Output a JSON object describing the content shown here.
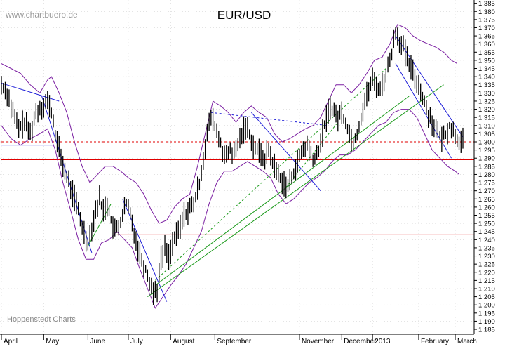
{
  "chart_data": {
    "type": "line",
    "title": "EUR/USD",
    "watermark_top": "www.chartbuero.de",
    "watermark_bottom": "Hoppenstedt Charts",
    "price_style": "high-low bars",
    "colors": {
      "price": "#000000",
      "bollinger": "#7b1fa2",
      "trend_blue": "#1e1ed8",
      "trend_green": "#1a9a1a",
      "support_red": "#e00000",
      "grid": "#c8c8c8"
    },
    "ylim": [
      1.182,
      1.387
    ],
    "y_ticks": [
      "1.385",
      "1.380",
      "1.375",
      "1.370",
      "1.365",
      "1.360",
      "1.355",
      "1.350",
      "1.345",
      "1.340",
      "1.335",
      "1.330",
      "1.325",
      "1.320",
      "1.315",
      "1.310",
      "1.305",
      "1.300",
      "1.295",
      "1.290",
      "1.285",
      "1.280",
      "1.275",
      "1.270",
      "1.265",
      "1.260",
      "1.255",
      "1.250",
      "1.245",
      "1.240",
      "1.235",
      "1.230",
      "1.225",
      "1.220",
      "1.215",
      "1.210",
      "1.205",
      "1.200",
      "1.195",
      "1.190",
      "1.185"
    ],
    "x_range": [
      0,
      240
    ],
    "x_ticks": [
      {
        "label": "April",
        "t": 0
      },
      {
        "label": "May",
        "t": 22
      },
      {
        "label": "June",
        "t": 45
      },
      {
        "label": "July",
        "t": 66
      },
      {
        "label": "August",
        "t": 88
      },
      {
        "label": "September",
        "t": 111
      },
      {
        "label": "November",
        "t": 155
      },
      {
        "label": "December",
        "t": 177
      },
      {
        "label": "2013",
        "t": 193
      },
      {
        "label": "February",
        "t": 217
      },
      {
        "label": "March",
        "t": 236
      }
    ],
    "price_path": [
      [
        0,
        1.335
      ],
      [
        3,
        1.33
      ],
      [
        6,
        1.318
      ],
      [
        9,
        1.308
      ],
      [
        12,
        1.312
      ],
      [
        15,
        1.305
      ],
      [
        18,
        1.318
      ],
      [
        21,
        1.322
      ],
      [
        24,
        1.325
      ],
      [
        26,
        1.318
      ],
      [
        28,
        1.305
      ],
      [
        30,
        1.295
      ],
      [
        33,
        1.282
      ],
      [
        36,
        1.272
      ],
      [
        39,
        1.262
      ],
      [
        42,
        1.248
      ],
      [
        45,
        1.238
      ],
      [
        47,
        1.248
      ],
      [
        49,
        1.258
      ],
      [
        51,
        1.265
      ],
      [
        53,
        1.258
      ],
      [
        55,
        1.262
      ],
      [
        57,
        1.252
      ],
      [
        59,
        1.245
      ],
      [
        61,
        1.248
      ],
      [
        63,
        1.255
      ],
      [
        65,
        1.262
      ],
      [
        67,
        1.255
      ],
      [
        69,
        1.245
      ],
      [
        71,
        1.235
      ],
      [
        73,
        1.228
      ],
      [
        75,
        1.222
      ],
      [
        77,
        1.215
      ],
      [
        79,
        1.208
      ],
      [
        81,
        1.21
      ],
      [
        83,
        1.228
      ],
      [
        85,
        1.235
      ],
      [
        87,
        1.23
      ],
      [
        89,
        1.238
      ],
      [
        91,
        1.242
      ],
      [
        93,
        1.248
      ],
      [
        95,
        1.255
      ],
      [
        97,
        1.258
      ],
      [
        99,
        1.26
      ],
      [
        101,
        1.265
      ],
      [
        103,
        1.275
      ],
      [
        105,
        1.29
      ],
      [
        107,
        1.305
      ],
      [
        109,
        1.315
      ],
      [
        111,
        1.31
      ],
      [
        113,
        1.302
      ],
      [
        115,
        1.295
      ],
      [
        117,
        1.29
      ],
      [
        119,
        1.295
      ],
      [
        121,
        1.292
      ],
      [
        123,
        1.298
      ],
      [
        125,
        1.305
      ],
      [
        127,
        1.31
      ],
      [
        129,
        1.305
      ],
      [
        131,
        1.298
      ],
      [
        133,
        1.295
      ],
      [
        135,
        1.292
      ],
      [
        137,
        1.29
      ],
      [
        139,
        1.295
      ],
      [
        141,
        1.288
      ],
      [
        143,
        1.282
      ],
      [
        145,
        1.278
      ],
      [
        147,
        1.275
      ],
      [
        149,
        1.272
      ],
      [
        151,
        1.278
      ],
      [
        153,
        1.285
      ],
      [
        155,
        1.29
      ],
      [
        157,
        1.295
      ],
      [
        159,
        1.298
      ],
      [
        161,
        1.292
      ],
      [
        163,
        1.288
      ],
      [
        165,
        1.295
      ],
      [
        167,
        1.305
      ],
      [
        169,
        1.315
      ],
      [
        171,
        1.322
      ],
      [
        173,
        1.318
      ],
      [
        175,
        1.315
      ],
      [
        177,
        1.318
      ],
      [
        179,
        1.312
      ],
      [
        181,
        1.305
      ],
      [
        183,
        1.3
      ],
      [
        185,
        1.305
      ],
      [
        187,
        1.315
      ],
      [
        189,
        1.325
      ],
      [
        191,
        1.332
      ],
      [
        193,
        1.338
      ],
      [
        195,
        1.335
      ],
      [
        197,
        1.332
      ],
      [
        199,
        1.338
      ],
      [
        201,
        1.345
      ],
      [
        203,
        1.355
      ],
      [
        205,
        1.368
      ],
      [
        207,
        1.362
      ],
      [
        209,
        1.358
      ],
      [
        211,
        1.35
      ],
      [
        213,
        1.345
      ],
      [
        215,
        1.34
      ],
      [
        217,
        1.335
      ],
      [
        219,
        1.328
      ],
      [
        221,
        1.32
      ],
      [
        223,
        1.315
      ],
      [
        225,
        1.31
      ],
      [
        227,
        1.305
      ],
      [
        229,
        1.302
      ],
      [
        231,
        1.305
      ],
      [
        233,
        1.31
      ],
      [
        235,
        1.306
      ],
      [
        237,
        1.302
      ],
      [
        239,
        1.3
      ]
    ],
    "bollinger_upper": [
      [
        0,
        1.348
      ],
      [
        5,
        1.345
      ],
      [
        10,
        1.342
      ],
      [
        15,
        1.335
      ],
      [
        20,
        1.33
      ],
      [
        24,
        1.338
      ],
      [
        26,
        1.34
      ],
      [
        30,
        1.33
      ],
      [
        34,
        1.318
      ],
      [
        38,
        1.3
      ],
      [
        42,
        1.285
      ],
      [
        46,
        1.275
      ],
      [
        50,
        1.28
      ],
      [
        54,
        1.285
      ],
      [
        58,
        1.285
      ],
      [
        62,
        1.282
      ],
      [
        66,
        1.278
      ],
      [
        70,
        1.275
      ],
      [
        74,
        1.268
      ],
      [
        78,
        1.258
      ],
      [
        82,
        1.25
      ],
      [
        86,
        1.252
      ],
      [
        90,
        1.26
      ],
      [
        94,
        1.265
      ],
      [
        98,
        1.268
      ],
      [
        102,
        1.285
      ],
      [
        106,
        1.305
      ],
      [
        110,
        1.325
      ],
      [
        114,
        1.322
      ],
      [
        118,
        1.318
      ],
      [
        122,
        1.312
      ],
      [
        126,
        1.318
      ],
      [
        130,
        1.322
      ],
      [
        134,
        1.318
      ],
      [
        138,
        1.315
      ],
      [
        142,
        1.305
      ],
      [
        146,
        1.3
      ],
      [
        150,
        1.302
      ],
      [
        154,
        1.305
      ],
      [
        158,
        1.308
      ],
      [
        162,
        1.31
      ],
      [
        166,
        1.315
      ],
      [
        170,
        1.325
      ],
      [
        174,
        1.335
      ],
      [
        178,
        1.335
      ],
      [
        182,
        1.33
      ],
      [
        186,
        1.335
      ],
      [
        190,
        1.342
      ],
      [
        194,
        1.35
      ],
      [
        198,
        1.352
      ],
      [
        202,
        1.36
      ],
      [
        206,
        1.372
      ],
      [
        210,
        1.37
      ],
      [
        214,
        1.365
      ],
      [
        218,
        1.362
      ],
      [
        222,
        1.36
      ],
      [
        226,
        1.358
      ],
      [
        230,
        1.355
      ],
      [
        234,
        1.35
      ],
      [
        237,
        1.348
      ]
    ],
    "bollinger_lower": [
      [
        0,
        1.31
      ],
      [
        5,
        1.302
      ],
      [
        10,
        1.298
      ],
      [
        15,
        1.302
      ],
      [
        20,
        1.305
      ],
      [
        24,
        1.308
      ],
      [
        28,
        1.295
      ],
      [
        32,
        1.275
      ],
      [
        36,
        1.258
      ],
      [
        40,
        1.24
      ],
      [
        44,
        1.228
      ],
      [
        48,
        1.228
      ],
      [
        52,
        1.238
      ],
      [
        56,
        1.24
      ],
      [
        60,
        1.245
      ],
      [
        64,
        1.24
      ],
      [
        68,
        1.235
      ],
      [
        72,
        1.222
      ],
      [
        76,
        1.21
      ],
      [
        80,
        1.198
      ],
      [
        84,
        1.205
      ],
      [
        88,
        1.212
      ],
      [
        92,
        1.218
      ],
      [
        96,
        1.225
      ],
      [
        100,
        1.235
      ],
      [
        104,
        1.245
      ],
      [
        108,
        1.262
      ],
      [
        112,
        1.275
      ],
      [
        116,
        1.282
      ],
      [
        120,
        1.282
      ],
      [
        124,
        1.285
      ],
      [
        128,
        1.288
      ],
      [
        132,
        1.285
      ],
      [
        136,
        1.282
      ],
      [
        140,
        1.278
      ],
      [
        144,
        1.268
      ],
      [
        148,
        1.262
      ],
      [
        152,
        1.265
      ],
      [
        156,
        1.27
      ],
      [
        160,
        1.275
      ],
      [
        164,
        1.278
      ],
      [
        168,
        1.282
      ],
      [
        172,
        1.288
      ],
      [
        176,
        1.292
      ],
      [
        180,
        1.292
      ],
      [
        184,
        1.295
      ],
      [
        188,
        1.3
      ],
      [
        192,
        1.305
      ],
      [
        196,
        1.31
      ],
      [
        200,
        1.312
      ],
      [
        204,
        1.318
      ],
      [
        208,
        1.32
      ],
      [
        212,
        1.32
      ],
      [
        216,
        1.315
      ],
      [
        220,
        1.305
      ],
      [
        224,
        1.295
      ],
      [
        228,
        1.29
      ],
      [
        232,
        1.285
      ],
      [
        236,
        1.282
      ],
      [
        238,
        1.28
      ]
    ],
    "trend_lines": [
      {
        "color": "blue",
        "dashed": false,
        "from": [
          0,
          1.336
        ],
        "to": [
          30,
          1.325
        ]
      },
      {
        "color": "blue",
        "dashed": false,
        "from": [
          21,
          1.328
        ],
        "to": [
          47,
          1.232
        ]
      },
      {
        "color": "blue",
        "dashed": false,
        "from": [
          63,
          1.265
        ],
        "to": [
          86,
          1.202
        ]
      },
      {
        "color": "blue",
        "dashed": true,
        "from": [
          109,
          1.318
        ],
        "to": [
          170,
          1.31
        ]
      },
      {
        "color": "blue",
        "dashed": false,
        "from": [
          130,
          1.318
        ],
        "to": [
          166,
          1.27
        ]
      },
      {
        "color": "blue",
        "dashed": false,
        "from": [
          205,
          1.365
        ],
        "to": [
          240,
          1.303
        ]
      },
      {
        "color": "blue",
        "dashed": false,
        "from": [
          205,
          1.348
        ],
        "to": [
          234,
          1.29
        ]
      },
      {
        "color": "green",
        "dashed": false,
        "from": [
          76,
          1.205
        ],
        "to": [
          230,
          1.335
        ]
      },
      {
        "color": "green",
        "dashed": false,
        "from": [
          80,
          1.212
        ],
        "to": [
          212,
          1.328
        ]
      },
      {
        "color": "green",
        "dashed": false,
        "from": [
          45,
          1.236
        ],
        "to": [
          57,
          1.262
        ]
      },
      {
        "color": "green",
        "dashed": true,
        "from": [
          80,
          1.215
        ],
        "to": [
          200,
          1.345
        ]
      },
      {
        "color": "green",
        "dashed": true,
        "from": [
          148,
          1.272
        ],
        "to": [
          175,
          1.312
        ]
      }
    ],
    "horizontal_levels": [
      {
        "value": 1.3,
        "color": "red",
        "dashed": true,
        "from_t": 0
      },
      {
        "value": 1.289,
        "color": "red",
        "dashed": false,
        "from_t": 0
      },
      {
        "value": 1.243,
        "color": "red",
        "dashed": false,
        "from_t": 60
      },
      {
        "value": 1.298,
        "color": "blue",
        "dashed": false,
        "from_t": 0,
        "to_t": 27
      }
    ]
  }
}
